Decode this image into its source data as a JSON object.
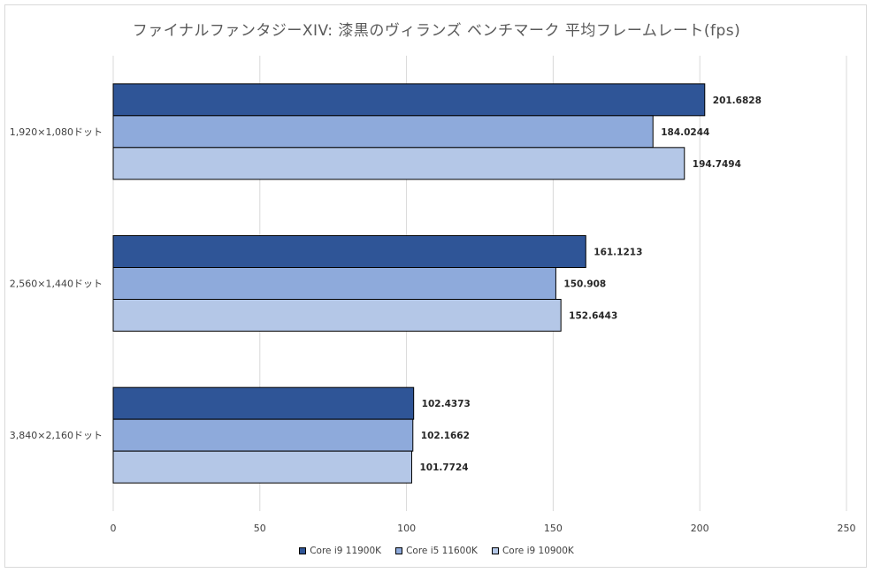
{
  "chart_data": {
    "type": "bar",
    "orientation": "horizontal",
    "title": "ファイナルファンタジーXIV: 漆黒のヴィランズ ベンチマーク 平均フレームレート(fps)",
    "categories": [
      "1,920×1,080ドット",
      "2,560×1,440ドット",
      "3,840×2,160ドット"
    ],
    "series": [
      {
        "name": "Core i9 11900K",
        "color": "#2F5597",
        "values": [
          201.6828,
          161.1213,
          102.4373
        ],
        "labels": [
          "201.6828",
          "161.1213",
          "102.4373"
        ]
      },
      {
        "name": "Core i5 11600K",
        "color": "#8EAADB",
        "values": [
          184.0244,
          150.908,
          102.1662
        ],
        "labels": [
          "184.0244",
          "150.908",
          "102.1662"
        ]
      },
      {
        "name": "Core i9 10900K",
        "color": "#B4C7E7",
        "values": [
          194.7494,
          152.6443,
          101.7724
        ],
        "labels": [
          "194.7494",
          "152.6443",
          "101.7724"
        ]
      }
    ],
    "xlim": [
      0,
      250
    ],
    "xticks": [
      "0",
      "50",
      "100",
      "150",
      "200",
      "250"
    ],
    "xtick_values": [
      0,
      50,
      100,
      150,
      200,
      250
    ],
    "grid": true,
    "legend": "bottom"
  }
}
